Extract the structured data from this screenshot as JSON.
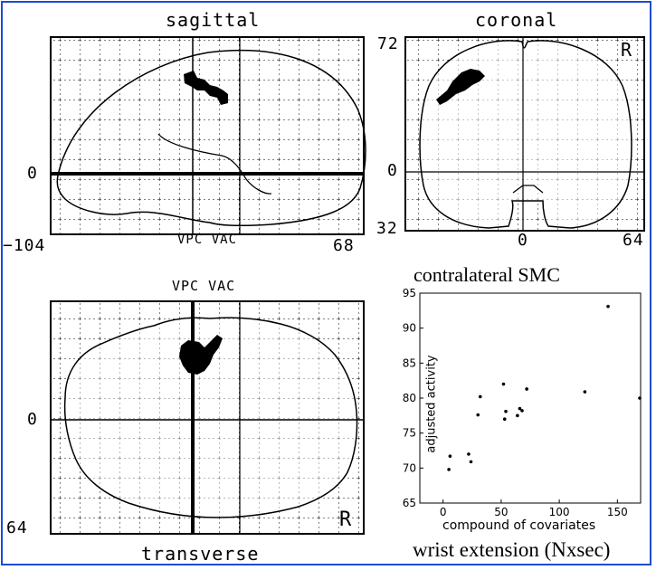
{
  "panels": {
    "sagittal": {
      "title": "sagittal",
      "y_zero_label": "0",
      "bottom_left_label": "−104",
      "bottom_right_label": "68",
      "axis_label": "VPC VAC"
    },
    "coronal": {
      "title": "coronal",
      "top_label": "72",
      "zero_label": "0",
      "bottom_label": "32",
      "x_zero_label": "0",
      "x_right_label": "64",
      "corner_label": "R"
    },
    "transverse": {
      "title": "transverse",
      "top_label": "VPC VAC",
      "zero_label": "0",
      "bottom_label": "64",
      "corner_label": "R"
    }
  },
  "scatter": {
    "title": "contralateral SMC",
    "caption": "wrist extension (Nxsec)",
    "xlabel": "compound of covariates",
    "ylabel": "adjusted activity",
    "xticks": [
      "0",
      "50",
      "100",
      "150"
    ],
    "yticks": [
      "65",
      "70",
      "75",
      "80",
      "85",
      "90",
      "95"
    ]
  },
  "chart_data": {
    "type": "scatter",
    "title": "contralateral SMC",
    "xlabel": "compound of covariates",
    "ylabel": "adjusted activity",
    "xlim": [
      -20,
      170
    ],
    "ylim": [
      65,
      95
    ],
    "grid": false,
    "x": [
      5,
      6,
      22,
      24,
      30,
      32,
      52,
      53,
      54,
      64,
      66,
      68,
      72,
      122,
      142,
      170
    ],
    "y": [
      69.8,
      71.7,
      72.0,
      70.9,
      77.6,
      80.2,
      82.0,
      77.0,
      78.1,
      77.5,
      78.5,
      78.2,
      81.3,
      80.9,
      93.1,
      80.0
    ]
  },
  "colors": {
    "frame": "#1e4bd2",
    "ink": "#000000"
  }
}
